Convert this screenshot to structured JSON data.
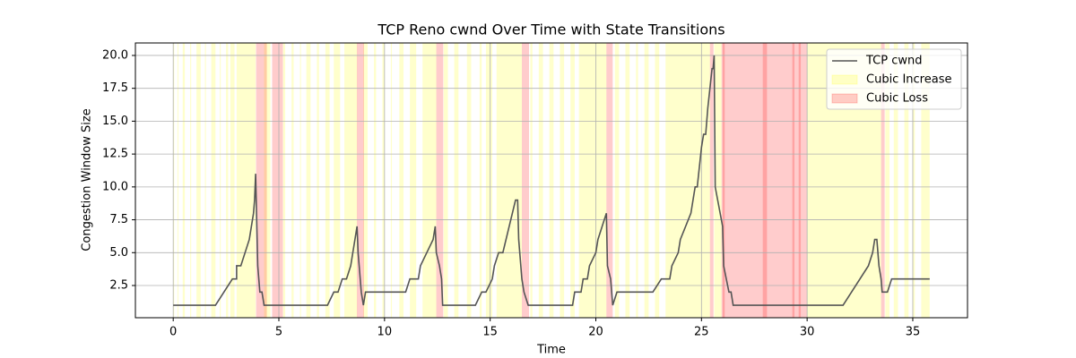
{
  "chart_data": {
    "type": "line",
    "title": "TCP Reno cwnd Over Time with State Transitions",
    "x_label": "Time",
    "y_label": "Congestion Window Size",
    "xlim": [
      -1.79,
      37.59
    ],
    "ylim": [
      0.05,
      20.95
    ],
    "xticks": [
      0,
      5,
      10,
      15,
      20,
      25,
      30,
      35
    ],
    "yticks": [
      {
        "value": 2.5,
        "label": "2.5"
      },
      {
        "value": 5,
        "label": "5.0"
      },
      {
        "value": 7.5,
        "label": "7.5"
      },
      {
        "value": 10,
        "label": "10.0"
      },
      {
        "value": 12.5,
        "label": "12.5"
      },
      {
        "value": 15,
        "label": "15.0"
      },
      {
        "value": 17.5,
        "label": "17.5"
      },
      {
        "value": 20,
        "label": "20.0"
      }
    ],
    "grid": true,
    "legend": "upper right",
    "span_alpha": 0.2,
    "series": [
      {
        "name": "TCP cwnd",
        "color": "#555555",
        "x": [
          0,
          2,
          2.8,
          3,
          3.0,
          3.2,
          3.6,
          3.8,
          3.85,
          3.9,
          4.0,
          4.1,
          4.2,
          4.3,
          7.3,
          7.6,
          7.8,
          8.0,
          8.2,
          8.4,
          8.5,
          8.6,
          8.7,
          8.75,
          8.8,
          8.9,
          9.0,
          9.1,
          11.0,
          11.2,
          11.6,
          11.7,
          12.0,
          12.3,
          12.4,
          12.45,
          12.6,
          12.7,
          12.75,
          14.3,
          14.6,
          14.8,
          15.1,
          15.2,
          15.4,
          15.6,
          15.9,
          16.2,
          16.3,
          16.35,
          16.5,
          16.6,
          16.8,
          18.9,
          19.0,
          19.3,
          19.4,
          19.6,
          19.7,
          20.0,
          20.1,
          20.3,
          20.5,
          20.55,
          20.7,
          20.8,
          21.0,
          22.7,
          23.1,
          23.5,
          23.6,
          23.9,
          24.0,
          24.5,
          24.7,
          24.8,
          25.0,
          25.1,
          25.2,
          25.3,
          25.5,
          25.55,
          25.6,
          25.65,
          26.0,
          26.05,
          26.3,
          26.4,
          26.5,
          31.7,
          32.9,
          33.1,
          33.2,
          33.3,
          33.4,
          33.5,
          33.55,
          33.8,
          34.0,
          35.8
        ],
        "values": [
          1,
          1,
          3,
          3,
          4,
          4,
          6,
          8,
          9,
          11,
          4,
          2,
          2,
          1,
          1,
          2,
          2,
          3,
          3,
          4,
          5,
          6,
          7,
          5,
          4,
          2,
          1,
          2,
          2,
          3,
          3,
          4,
          5,
          6,
          7,
          5,
          4,
          3,
          1,
          1,
          2,
          2,
          3,
          4,
          5,
          5,
          7,
          9,
          9,
          6,
          3,
          2,
          1,
          1,
          2,
          2,
          3,
          3,
          4,
          5,
          6,
          7,
          8,
          4,
          3,
          1,
          2,
          2,
          3,
          3,
          4,
          5,
          6,
          8,
          10,
          10,
          13,
          14,
          14,
          16,
          19,
          19,
          20,
          10,
          7,
          4,
          2,
          2,
          1,
          1,
          4,
          5,
          6,
          6,
          4,
          3,
          2,
          2,
          3,
          3
        ]
      }
    ],
    "spans": [
      {
        "name": "Cubic Increase",
        "color": "#ffff00",
        "intervals": [
          [
            0,
            0.05
          ],
          [
            0.2,
            0.25
          ],
          [
            0.45,
            0.55
          ],
          [
            0.8,
            0.85
          ],
          [
            1.1,
            1.3
          ],
          [
            1.5,
            1.55
          ],
          [
            1.8,
            2.0
          ],
          [
            2.2,
            2.25
          ],
          [
            2.5,
            2.6
          ],
          [
            2.7,
            2.9
          ],
          [
            3.0,
            3.9
          ],
          [
            4.3,
            4.6
          ],
          [
            5.2,
            5.3
          ],
          [
            5.6,
            5.7
          ],
          [
            6.0,
            6.05
          ],
          [
            6.3,
            6.5
          ],
          [
            6.8,
            6.9
          ],
          [
            7.2,
            7.4
          ],
          [
            7.6,
            7.9
          ],
          [
            8.1,
            8.7
          ],
          [
            9.0,
            9.2
          ],
          [
            9.5,
            9.6
          ],
          [
            9.9,
            10.0
          ],
          [
            10.3,
            10.35
          ],
          [
            10.7,
            10.9
          ],
          [
            11.2,
            11.5
          ],
          [
            11.8,
            12.45
          ],
          [
            12.8,
            13.0
          ],
          [
            13.3,
            13.5
          ],
          [
            13.9,
            14.1
          ],
          [
            14.5,
            14.6
          ],
          [
            14.8,
            15.1
          ],
          [
            15.3,
            16.5
          ],
          [
            16.9,
            17.0
          ],
          [
            17.3,
            17.5
          ],
          [
            17.8,
            18.0
          ],
          [
            18.3,
            18.5
          ],
          [
            18.8,
            19.0
          ],
          [
            19.2,
            20.5
          ],
          [
            20.9,
            21.1
          ],
          [
            21.4,
            21.6
          ],
          [
            21.9,
            22.0
          ],
          [
            22.3,
            22.5
          ],
          [
            22.8,
            23.0
          ],
          [
            23.3,
            25.4
          ],
          [
            25.6,
            25.95
          ],
          [
            30.0,
            33.5
          ],
          [
            33.7,
            33.9
          ],
          [
            34.1,
            34.3
          ],
          [
            34.6,
            34.8
          ],
          [
            35.0,
            35.1
          ],
          [
            35.4,
            35.8
          ]
        ]
      },
      {
        "name": "Cubic Loss",
        "color": "#ff0000",
        "intervals": [
          [
            3.92,
            4.43
          ],
          [
            4.68,
            5.19
          ],
          [
            8.69,
            9.03
          ],
          [
            12.45,
            12.78
          ],
          [
            16.5,
            16.84
          ],
          [
            20.5,
            20.8
          ],
          [
            25.4,
            25.57
          ],
          [
            25.95,
            30.0
          ],
          [
            26.0,
            26.1
          ],
          [
            27.9,
            28.1
          ],
          [
            29.3,
            29.4
          ],
          [
            29.6,
            29.7
          ],
          [
            33.5,
            33.67
          ]
        ]
      }
    ]
  }
}
